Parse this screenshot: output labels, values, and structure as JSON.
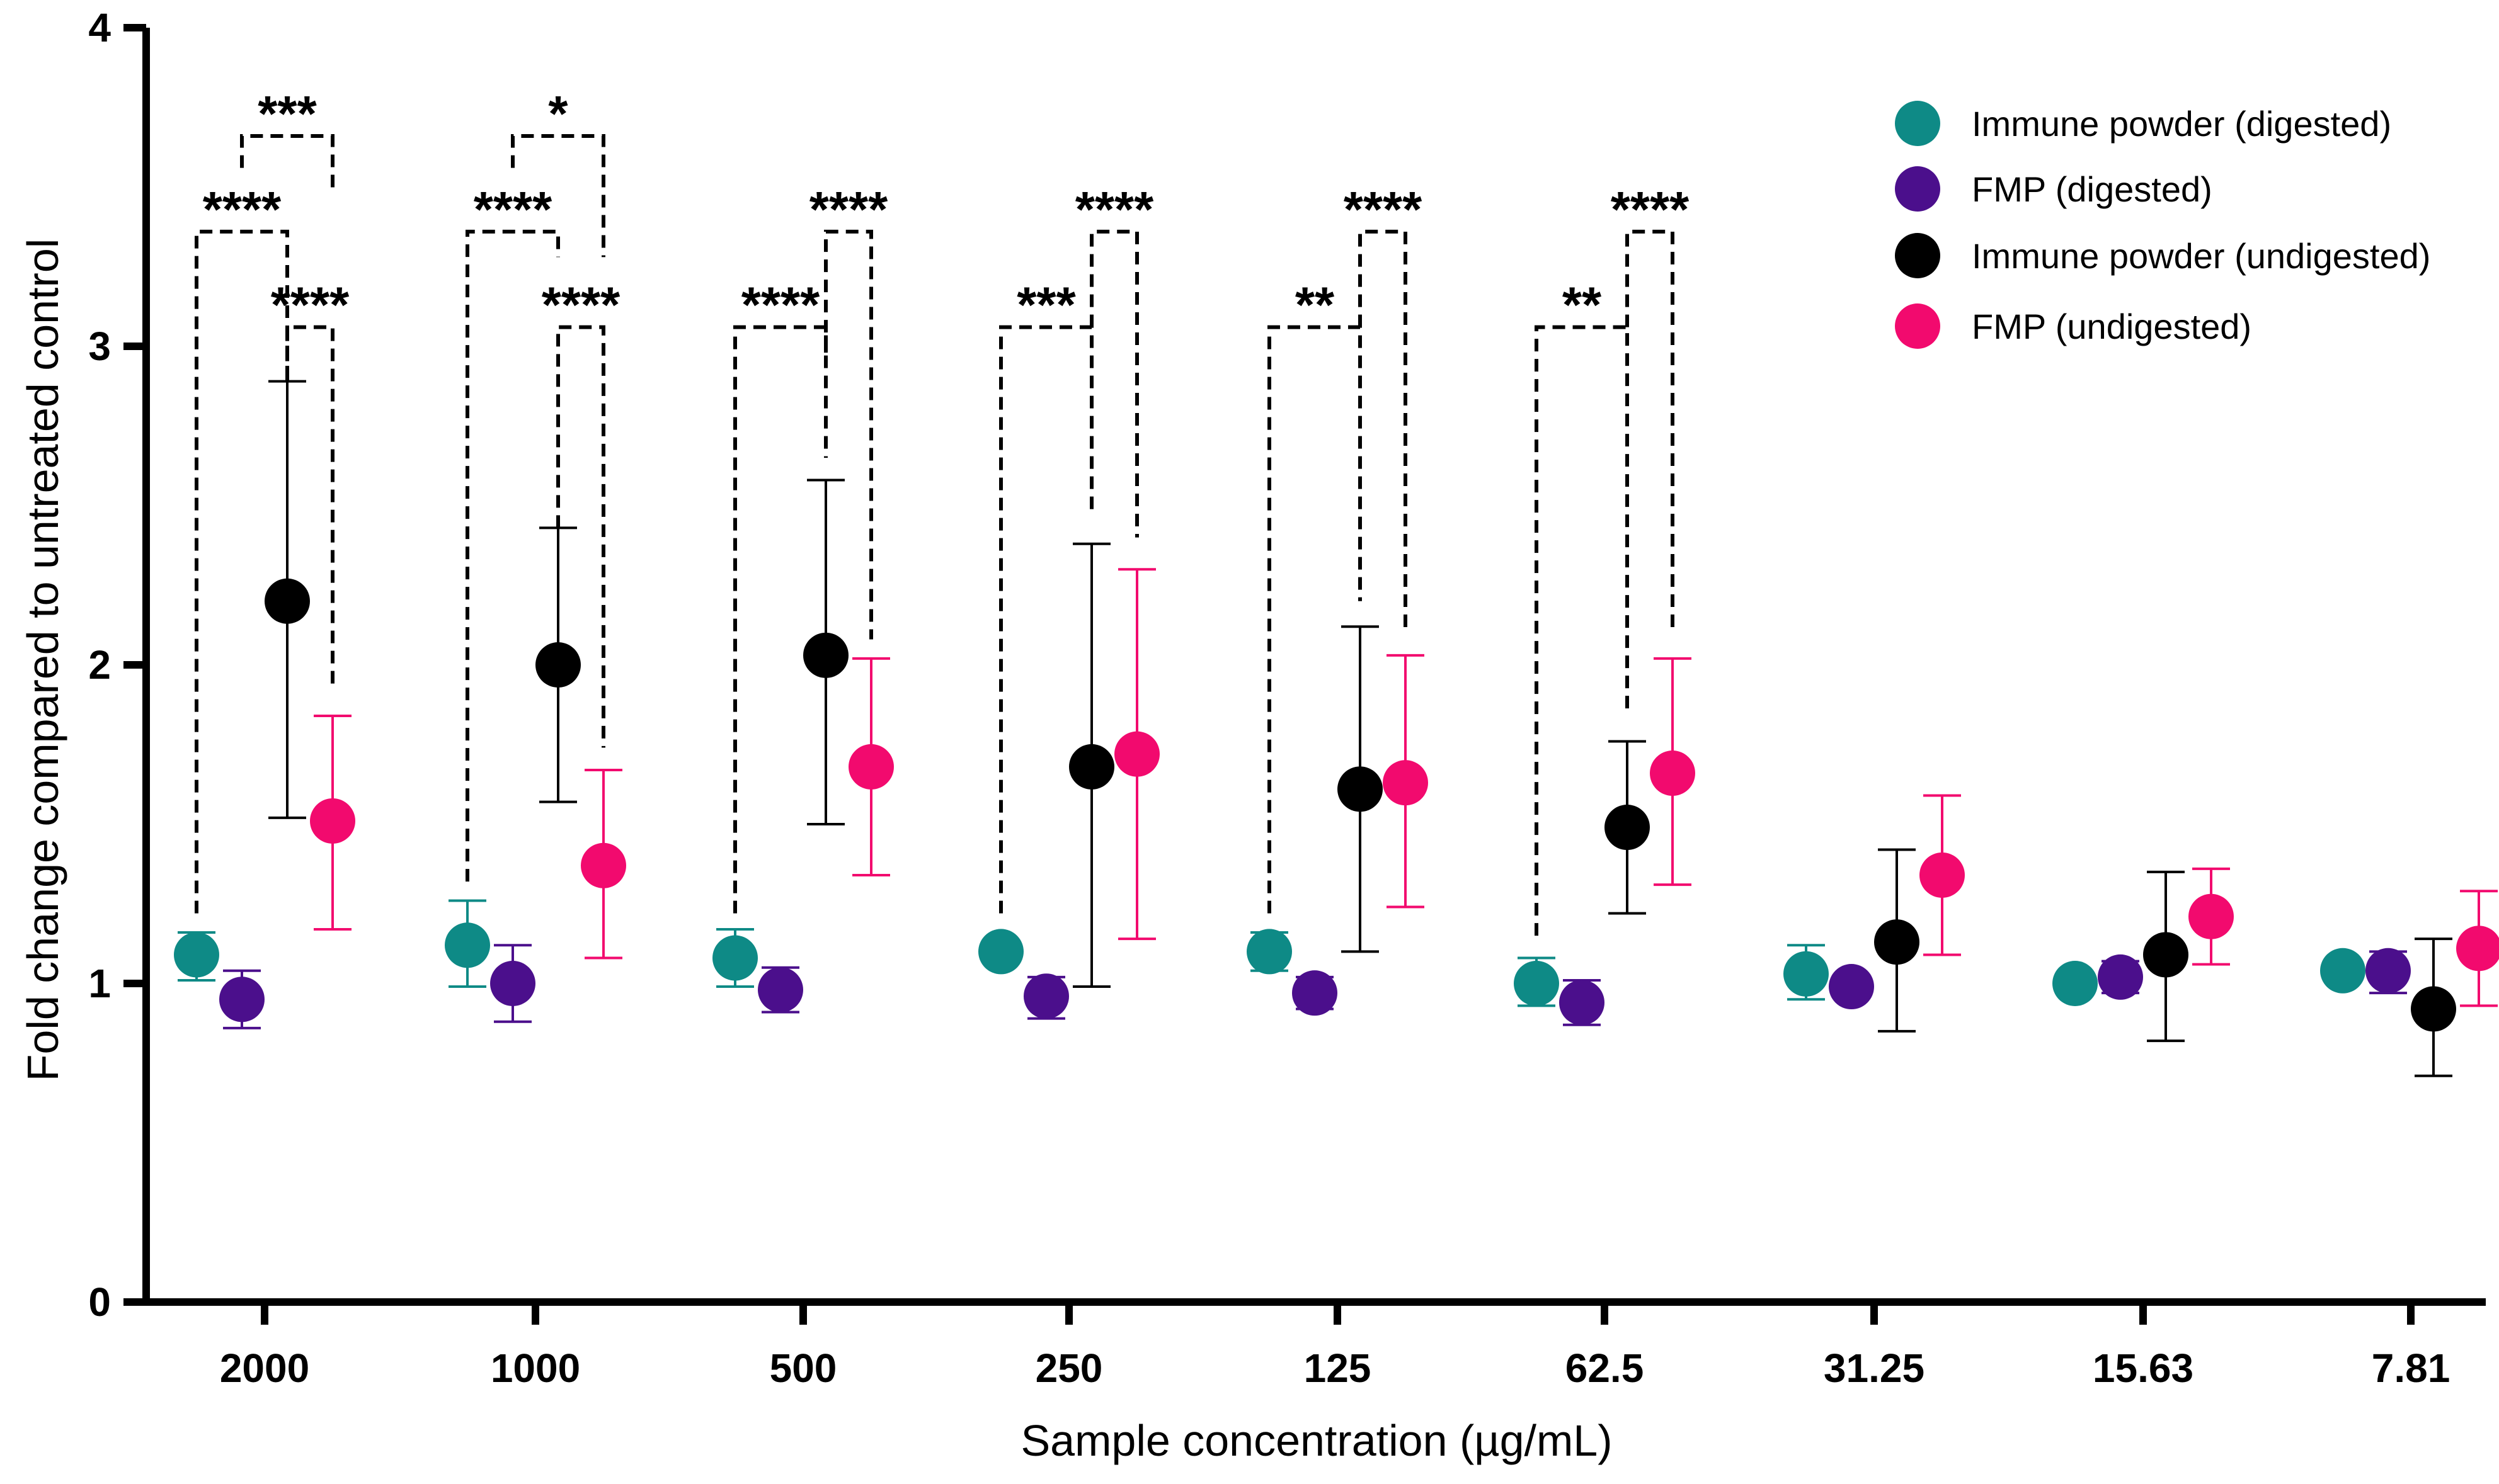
{
  "chart_data": {
    "type": "scatter",
    "xlabel": "Sample concentration (µg/mL)",
    "ylabel": "Fold change compared to untreated control",
    "ylim": [
      0,
      4
    ],
    "yticks": [
      "0",
      "1",
      "2",
      "3",
      "4"
    ],
    "categories": [
      "2000",
      "1000",
      "500",
      "250",
      "125",
      "62.5",
      "31.25",
      "15.63",
      "7.81"
    ],
    "legend_position": "top-right",
    "series": [
      {
        "name": "Immune powder (digested)",
        "color": "#0e8a86",
        "means": [
          1.09,
          1.12,
          1.08,
          1.1,
          1.1,
          1.0,
          1.03,
          1.0,
          1.04
        ],
        "lower": [
          1.01,
          0.99,
          0.99,
          1.1,
          1.04,
          0.93,
          0.95,
          1.0,
          1.04
        ],
        "upper": [
          1.16,
          1.26,
          1.17,
          1.1,
          1.16,
          1.08,
          1.12,
          1.0,
          1.04
        ]
      },
      {
        "name": "FMP (digested)",
        "color": "#4b0f8c",
        "means": [
          0.95,
          1.0,
          0.98,
          0.96,
          0.97,
          0.94,
          0.99,
          1.02,
          1.04
        ],
        "lower": [
          0.86,
          0.88,
          0.91,
          0.89,
          0.92,
          0.87,
          0.96,
          0.97,
          0.97
        ],
        "upper": [
          1.04,
          1.12,
          1.05,
          1.02,
          1.02,
          1.01,
          1.02,
          1.07,
          1.1
        ]
      },
      {
        "name": "Immune powder (undigested)",
        "color": "#000000",
        "means": [
          2.2,
          2.0,
          2.03,
          1.68,
          1.61,
          1.49,
          1.13,
          1.09,
          0.92
        ],
        "lower": [
          1.52,
          1.57,
          1.5,
          0.99,
          1.1,
          1.22,
          0.85,
          0.82,
          0.71
        ],
        "upper": [
          2.89,
          2.43,
          2.58,
          2.38,
          2.12,
          1.76,
          1.42,
          1.35,
          1.14
        ]
      },
      {
        "name": "FMP (undigested)",
        "color": "#f20a6e",
        "means": [
          1.51,
          1.37,
          1.68,
          1.72,
          1.63,
          1.66,
          1.34,
          1.21,
          1.11
        ],
        "lower": [
          1.17,
          1.08,
          1.34,
          1.14,
          1.24,
          1.31,
          1.09,
          1.06,
          0.93
        ],
        "upper": [
          1.84,
          1.67,
          2.02,
          2.3,
          2.03,
          2.02,
          1.59,
          1.36,
          1.29
        ]
      }
    ],
    "comparisons": [
      {
        "group": 0,
        "from": 0,
        "to": 2,
        "label": "****",
        "base_from": 1.22,
        "base_to": 2.89,
        "bracket": 3.36
      },
      {
        "group": 0,
        "from": 2,
        "to": 3,
        "label": "****",
        "base_from": 2.89,
        "base_to": 1.92,
        "bracket": 3.06
      },
      {
        "group": 0,
        "from": 1,
        "to": 3,
        "label": "***",
        "base_from": 3.56,
        "base_to": 3.48,
        "bracket": 3.66
      },
      {
        "group": 1,
        "from": 0,
        "to": 2,
        "label": "****",
        "base_from": 1.32,
        "base_to": 3.28,
        "bracket": 3.36
      },
      {
        "group": 1,
        "from": 2,
        "to": 3,
        "label": "****",
        "base_from": 2.43,
        "base_to": 1.74,
        "bracket": 3.06
      },
      {
        "group": 1,
        "from": 1,
        "to": 3,
        "label": "*",
        "base_from": 3.56,
        "base_to": 3.28,
        "bracket": 3.66
      },
      {
        "group": 2,
        "from": 0,
        "to": 2,
        "label": "****",
        "base_from": 1.22,
        "base_to": 2.65,
        "bracket": 3.06
      },
      {
        "group": 2,
        "from": 2,
        "to": 3,
        "label": "****",
        "base_from": 2.98,
        "base_to": 2.08,
        "bracket": 3.36
      },
      {
        "group": 3,
        "from": 0,
        "to": 2,
        "label": "***",
        "base_from": 1.22,
        "base_to": 2.48,
        "bracket": 3.06
      },
      {
        "group": 3,
        "from": 2,
        "to": 3,
        "label": "****",
        "base_from": 3.06,
        "base_to": 2.4,
        "bracket": 3.36
      },
      {
        "group": 4,
        "from": 0,
        "to": 2,
        "label": "**",
        "base_from": 1.22,
        "base_to": 2.2,
        "bracket": 3.06
      },
      {
        "group": 4,
        "from": 2,
        "to": 3,
        "label": "****",
        "base_from": 3.06,
        "base_to": 2.1,
        "bracket": 3.36
      },
      {
        "group": 5,
        "from": 0,
        "to": 2,
        "label": "**",
        "base_from": 1.15,
        "base_to": 1.84,
        "bracket": 3.06
      },
      {
        "group": 5,
        "from": 2,
        "to": 3,
        "label": "****",
        "base_from": 3.06,
        "base_to": 2.1,
        "bracket": 3.36
      }
    ]
  }
}
